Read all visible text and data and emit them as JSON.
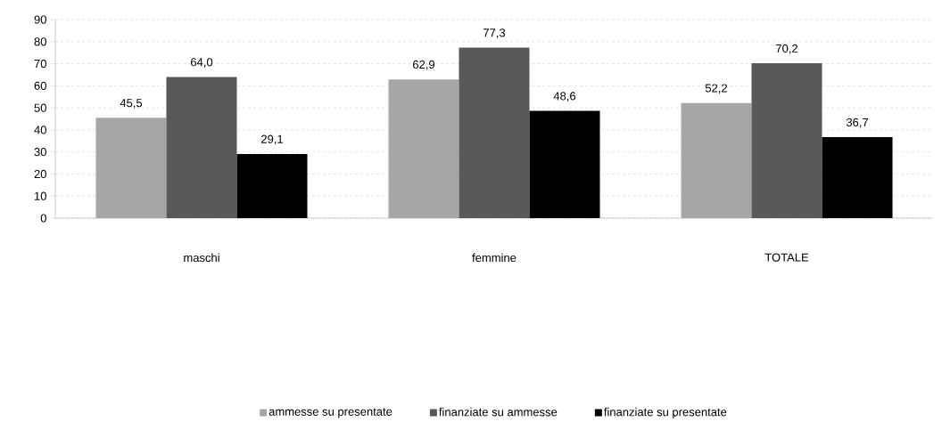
{
  "chart_data": {
    "type": "bar",
    "categories": [
      "maschi",
      "femmine",
      "TOTALE"
    ],
    "series": [
      {
        "name": "ammesse su presentate",
        "color": "#a6a6a6",
        "values": [
          45.5,
          62.9,
          52.2
        ],
        "value_labels": [
          "45,5",
          "62,9",
          "52,2"
        ]
      },
      {
        "name": "finanziate su ammesse",
        "color": "#595959",
        "values": [
          64.0,
          77.3,
          70.2
        ],
        "value_labels": [
          "64,0",
          "77,3",
          "70,2"
        ]
      },
      {
        "name": "finanziate su presentate",
        "color": "#000000",
        "values": [
          29.1,
          48.6,
          36.7
        ],
        "value_labels": [
          "29,1",
          "48,6",
          "36,7"
        ]
      }
    ],
    "ylim": [
      0,
      90
    ],
    "yticks": [
      0,
      10,
      20,
      30,
      40,
      50,
      60,
      70,
      80,
      90
    ],
    "grid": "y",
    "legend": "bottom"
  }
}
